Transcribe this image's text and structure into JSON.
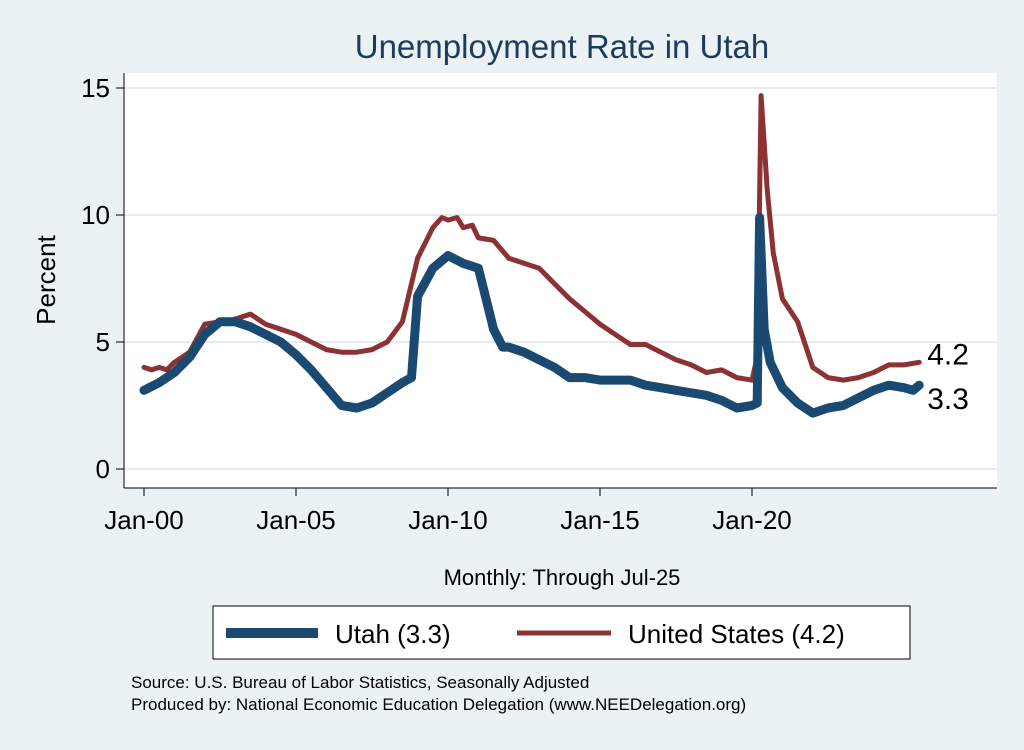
{
  "chart_data": {
    "type": "line",
    "title": "Unemployment Rate in Utah",
    "ylabel": "Percent",
    "xlabel": "Monthly: Through Jul-25",
    "ylim": [
      0,
      15
    ],
    "xlim": [
      2000.0,
      2027.8
    ],
    "yticks": [
      0,
      5,
      10,
      15
    ],
    "xticks": [
      {
        "label": "Jan-00",
        "value": 2000.0
      },
      {
        "label": "Jan-05",
        "value": 2005.0
      },
      {
        "label": "Jan-10",
        "value": 2010.0
      },
      {
        "label": "Jan-15",
        "value": 2015.0
      },
      {
        "label": "Jan-20",
        "value": 2020.0
      }
    ],
    "grid": true,
    "legend_position": "bottom",
    "series": [
      {
        "name": "Utah (3.3)",
        "end_label": "3.3",
        "color": "#1a4a72",
        "x": [
          2000.0,
          2000.5,
          2001.0,
          2001.5,
          2002.0,
          2002.5,
          2003.0,
          2003.5,
          2004.0,
          2004.5,
          2005.0,
          2005.5,
          2006.0,
          2006.5,
          2007.0,
          2007.5,
          2008.0,
          2008.5,
          2008.8,
          2009.0,
          2009.5,
          2010.0,
          2010.5,
          2011.0,
          2011.5,
          2011.8,
          2012.0,
          2012.5,
          2013.0,
          2013.5,
          2014.0,
          2014.5,
          2015.0,
          2015.5,
          2016.0,
          2016.5,
          2017.0,
          2017.5,
          2018.0,
          2018.5,
          2019.0,
          2019.5,
          2020.0,
          2020.17,
          2020.25,
          2020.4,
          2020.6,
          2021.0,
          2021.5,
          2022.0,
          2022.5,
          2023.0,
          2023.5,
          2024.0,
          2024.5,
          2025.0,
          2025.3,
          2025.5
        ],
        "y": [
          3.1,
          3.4,
          3.8,
          4.4,
          5.3,
          5.8,
          5.8,
          5.6,
          5.3,
          5.0,
          4.5,
          3.9,
          3.2,
          2.5,
          2.4,
          2.6,
          3.0,
          3.4,
          3.6,
          6.8,
          7.9,
          8.4,
          8.1,
          7.9,
          5.5,
          4.8,
          4.8,
          4.6,
          4.3,
          4.0,
          3.6,
          3.6,
          3.5,
          3.5,
          3.5,
          3.3,
          3.2,
          3.1,
          3.0,
          2.9,
          2.7,
          2.4,
          2.5,
          2.6,
          9.9,
          5.5,
          4.2,
          3.2,
          2.6,
          2.2,
          2.4,
          2.5,
          2.8,
          3.1,
          3.3,
          3.2,
          3.1,
          3.3
        ]
      },
      {
        "name": "United States (4.2)",
        "end_label": "4.2",
        "color": "#8c3235",
        "x": [
          2000.0,
          2000.25,
          2000.5,
          2000.75,
          2001.0,
          2001.5,
          2002.0,
          2002.5,
          2003.0,
          2003.5,
          2004.0,
          2004.5,
          2005.0,
          2005.5,
          2006.0,
          2006.5,
          2007.0,
          2007.5,
          2008.0,
          2008.5,
          2009.0,
          2009.5,
          2009.8,
          2010.0,
          2010.3,
          2010.5,
          2010.8,
          2011.0,
          2011.5,
          2012.0,
          2012.5,
          2013.0,
          2013.5,
          2014.0,
          2014.5,
          2015.0,
          2015.5,
          2016.0,
          2016.5,
          2017.0,
          2017.5,
          2018.0,
          2018.5,
          2019.0,
          2019.5,
          2020.0,
          2020.17,
          2020.3,
          2020.5,
          2020.7,
          2021.0,
          2021.5,
          2022.0,
          2022.5,
          2023.0,
          2023.5,
          2024.0,
          2024.5,
          2025.0,
          2025.5
        ],
        "y": [
          4.0,
          3.9,
          4.0,
          3.9,
          4.2,
          4.6,
          5.7,
          5.8,
          5.9,
          6.1,
          5.7,
          5.5,
          5.3,
          5.0,
          4.7,
          4.6,
          4.6,
          4.7,
          5.0,
          5.8,
          8.3,
          9.5,
          9.9,
          9.8,
          9.9,
          9.5,
          9.6,
          9.1,
          9.0,
          8.3,
          8.1,
          7.9,
          7.3,
          6.7,
          6.2,
          5.7,
          5.3,
          4.9,
          4.9,
          4.6,
          4.3,
          4.1,
          3.8,
          3.9,
          3.6,
          3.5,
          4.4,
          14.7,
          11.0,
          8.5,
          6.7,
          5.8,
          4.0,
          3.6,
          3.5,
          3.6,
          3.8,
          4.1,
          4.1,
          4.2
        ]
      }
    ],
    "source_line": "Source: U.S. Bureau of Labor Statistics, Seasonally Adjusted",
    "produced_line": "Produced by: National Economic Education Delegation (www.NEEDelegation.org)"
  }
}
